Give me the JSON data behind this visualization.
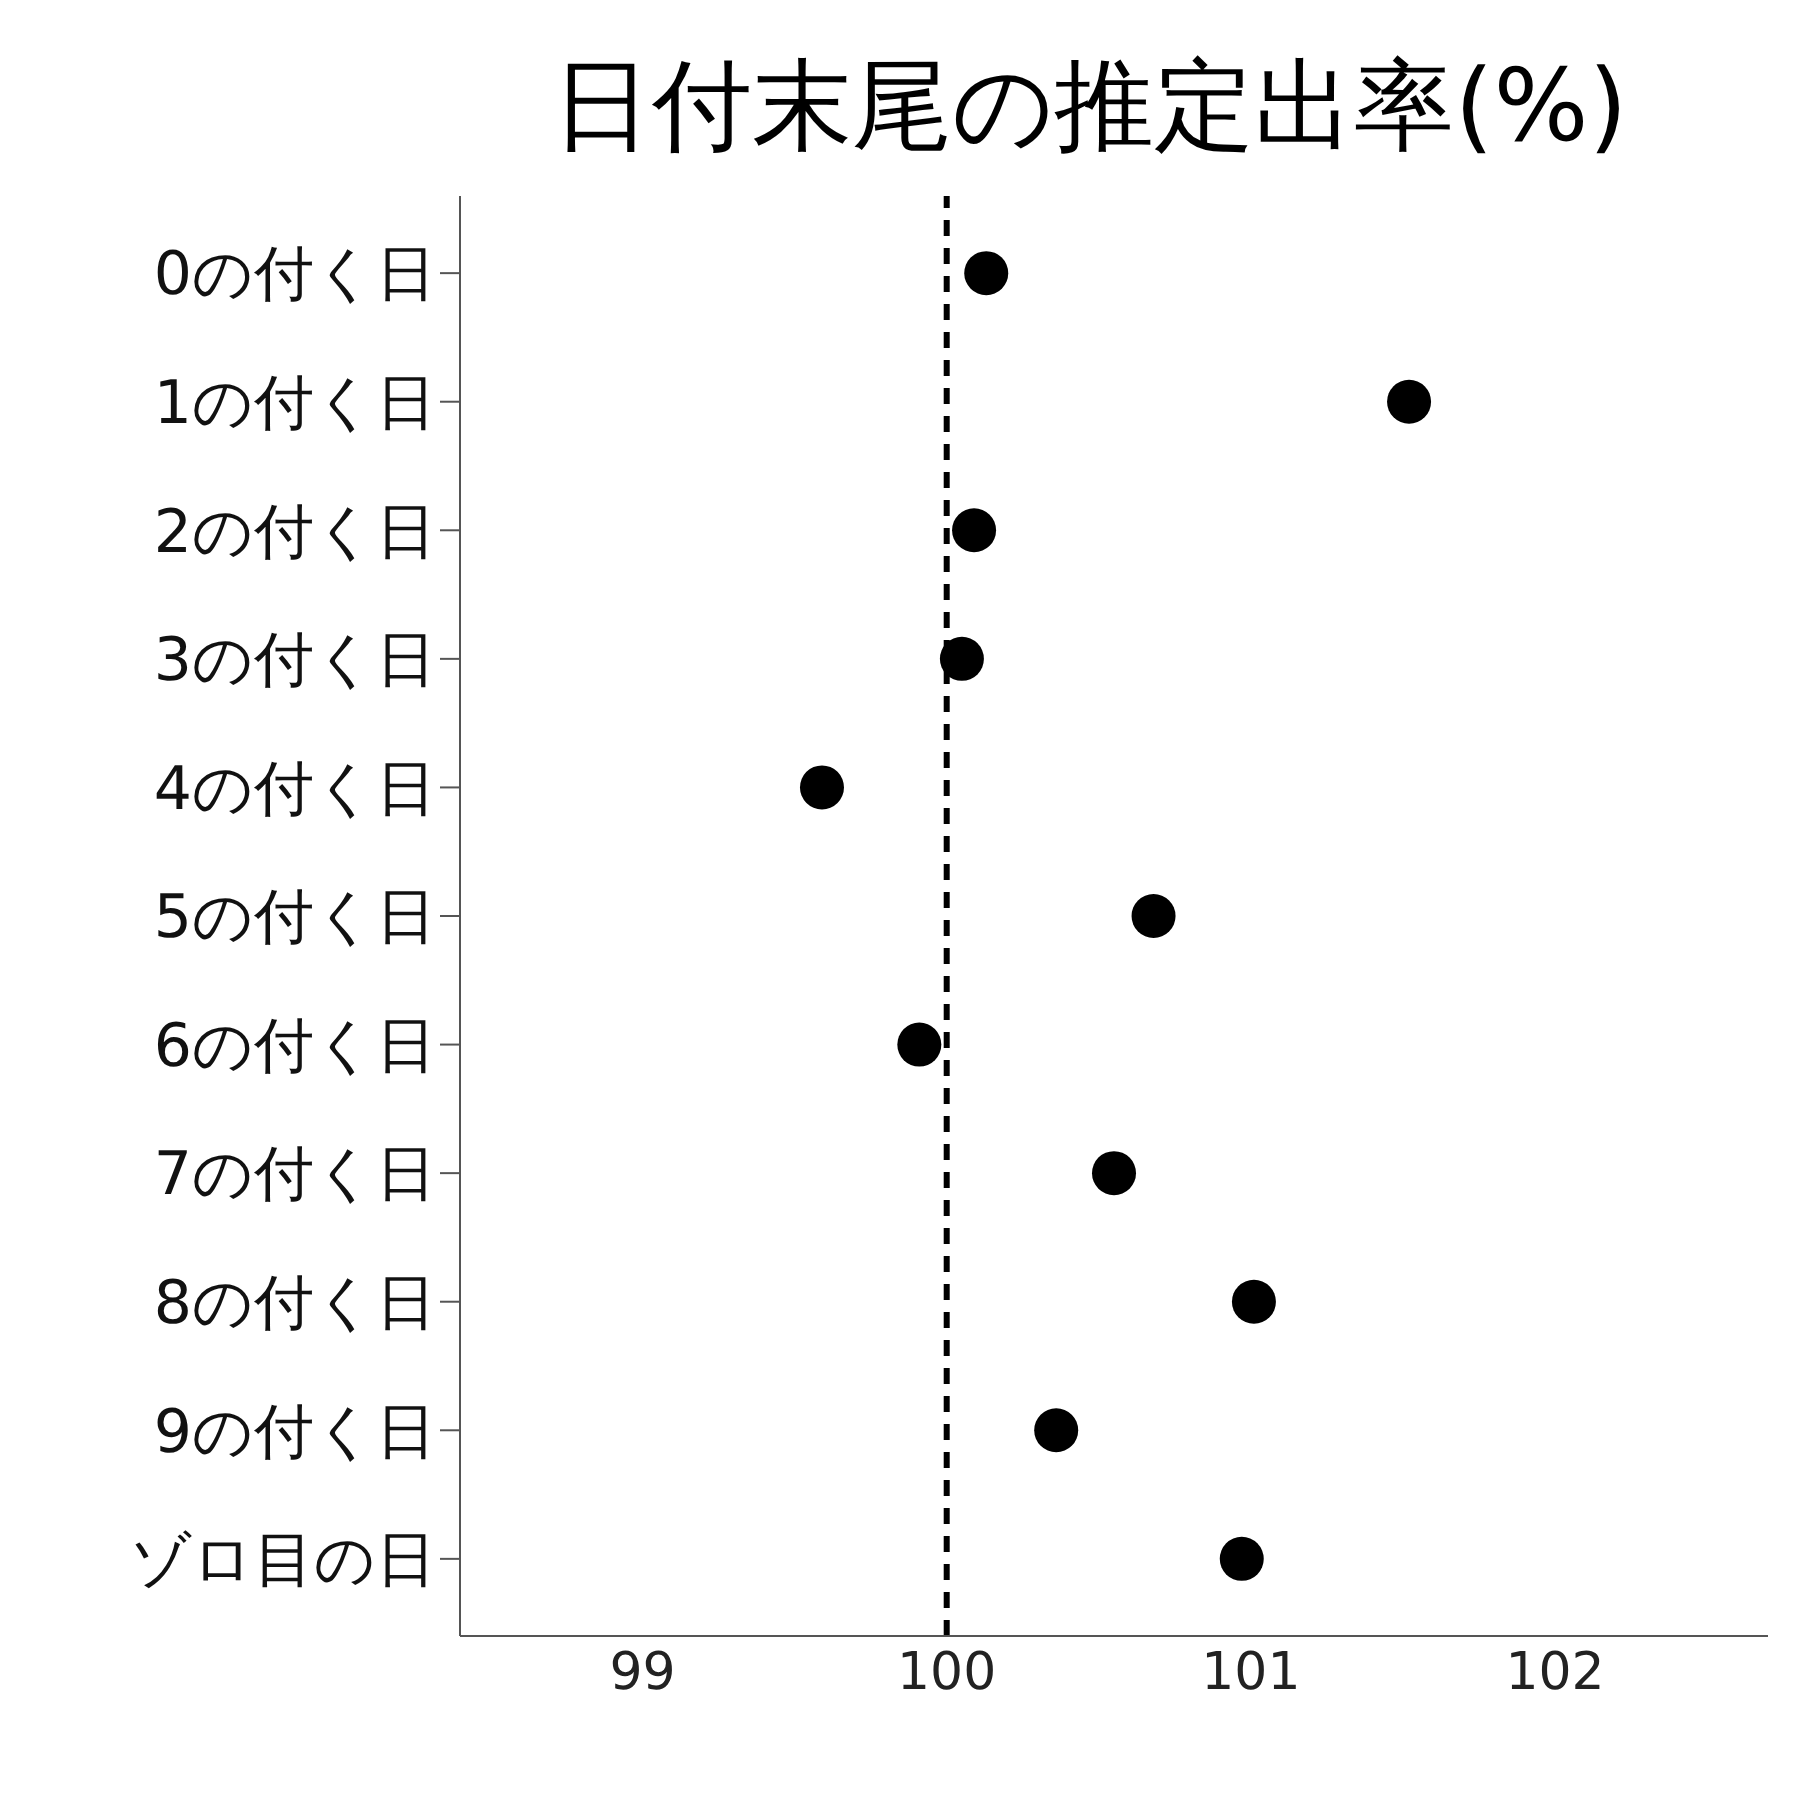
{
  "chart_data": {
    "type": "scatter",
    "title": "日付末尾の推定出率(%)",
    "orientation": "horizontal",
    "marker": "circle",
    "color": "#000000",
    "categories": [
      "0の付く日",
      "1の付く日",
      "2の付く日",
      "3の付く日",
      "4の付く日",
      "5の付く日",
      "6の付く日",
      "7の付く日",
      "8の付く日",
      "9の付く日",
      "ゾロ目の日"
    ],
    "values": [
      100.13,
      101.52,
      100.09,
      100.05,
      99.59,
      100.68,
      99.91,
      100.55,
      101.01,
      100.36,
      100.97
    ],
    "xlim": [
      98.4,
      102.7
    ],
    "xticks": [
      99,
      100,
      101,
      102
    ],
    "ref_lines": [
      {
        "axis": "x",
        "value": 100,
        "line_style": "dashed",
        "color": "#000000"
      }
    ]
  }
}
